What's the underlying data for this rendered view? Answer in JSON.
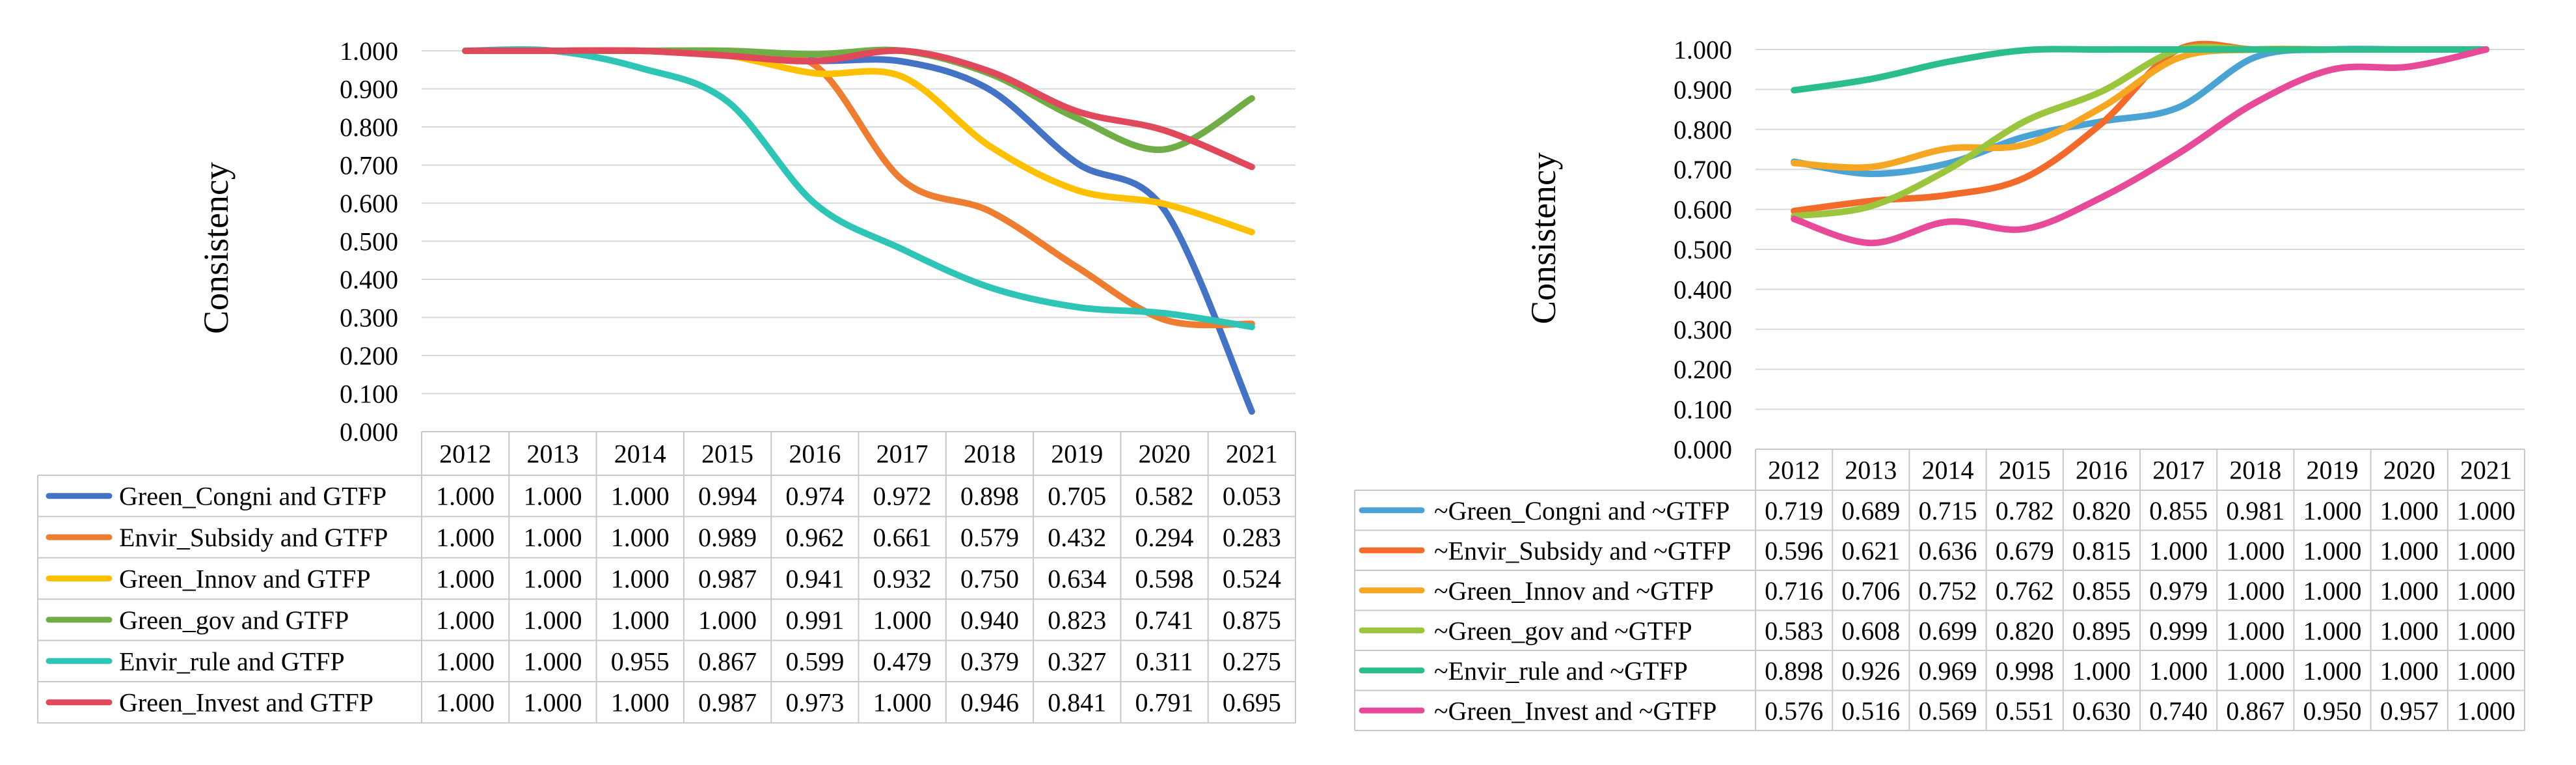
{
  "chart_data": [
    {
      "type": "line",
      "ylabel": "Consistency",
      "ylim": [
        0,
        1
      ],
      "yticks": [
        "1.000",
        "0.900",
        "0.800",
        "0.700",
        "0.600",
        "0.500",
        "0.400",
        "0.300",
        "0.200",
        "0.100",
        "0.000"
      ],
      "categories": [
        "2012",
        "2013",
        "2014",
        "2015",
        "2016",
        "2017",
        "2018",
        "2019",
        "2020",
        "2021"
      ],
      "legend": "data-table-below",
      "series": [
        {
          "name": "Green_Congni and GTFP",
          "color": "#4472C4",
          "values": [
            1.0,
            1.0,
            1.0,
            0.994,
            0.974,
            0.972,
            0.898,
            0.705,
            0.582,
            0.053
          ],
          "labels": [
            "1.000",
            "1.000",
            "1.000",
            "0.994",
            "0.974",
            "0.972",
            "0.898",
            "0.705",
            "0.582",
            "0.053"
          ]
        },
        {
          "name": "Envir_Subsidy and GTFP",
          "color": "#ED7D31",
          "values": [
            1.0,
            1.0,
            1.0,
            0.989,
            0.962,
            0.661,
            0.579,
            0.432,
            0.294,
            0.283
          ],
          "labels": [
            "1.000",
            "1.000",
            "1.000",
            "0.989",
            "0.962",
            "0.661",
            "0.579",
            "0.432",
            "0.294",
            "0.283"
          ]
        },
        {
          "name": "Green_Innov and GTFP",
          "color": "#FFC000",
          "values": [
            1.0,
            1.0,
            1.0,
            0.987,
            0.941,
            0.932,
            0.75,
            0.634,
            0.598,
            0.524
          ],
          "labels": [
            "1.000",
            "1.000",
            "1.000",
            "0.987",
            "0.941",
            "0.932",
            "0.750",
            "0.634",
            "0.598",
            "0.524"
          ]
        },
        {
          "name": "Green_gov and GTFP",
          "color": "#70AD47",
          "values": [
            1.0,
            1.0,
            1.0,
            1.0,
            0.991,
            1.0,
            0.94,
            0.823,
            0.741,
            0.875
          ],
          "labels": [
            "1.000",
            "1.000",
            "1.000",
            "1.000",
            "0.991",
            "1.000",
            "0.940",
            "0.823",
            "0.741",
            "0.875"
          ]
        },
        {
          "name": "Envir_rule and GTFP",
          "color": "#2EC4B6",
          "values": [
            1.0,
            1.0,
            0.955,
            0.867,
            0.599,
            0.479,
            0.379,
            0.327,
            0.311,
            0.275
          ],
          "labels": [
            "1.000",
            "1.000",
            "0.955",
            "0.867",
            "0.599",
            "0.479",
            "0.379",
            "0.327",
            "0.311",
            "0.275"
          ]
        },
        {
          "name": "Green_Invest and GTFP",
          "color": "#E0485C",
          "values": [
            1.0,
            1.0,
            1.0,
            0.987,
            0.973,
            1.0,
            0.946,
            0.841,
            0.791,
            0.695
          ],
          "labels": [
            "1.000",
            "1.000",
            "1.000",
            "0.987",
            "0.973",
            "1.000",
            "0.946",
            "0.841",
            "0.791",
            "0.695"
          ]
        }
      ]
    },
    {
      "type": "line",
      "ylabel": "Consistency",
      "ylim": [
        0,
        1
      ],
      "yticks": [
        "1.000",
        "0.900",
        "0.800",
        "0.700",
        "0.600",
        "0.500",
        "0.400",
        "0.300",
        "0.200",
        "0.100",
        "0.000"
      ],
      "categories": [
        "2012",
        "2013",
        "2014",
        "2015",
        "2016",
        "2017",
        "2018",
        "2019",
        "2020",
        "2021"
      ],
      "legend": "data-table-below",
      "series": [
        {
          "name": "~Green_Congni and ~GTFP",
          "color": "#4BA3D4",
          "values": [
            0.719,
            0.689,
            0.715,
            0.782,
            0.82,
            0.855,
            0.981,
            1.0,
            1.0,
            1.0
          ],
          "labels": [
            "0.719",
            "0.689",
            "0.715",
            "0.782",
            "0.820",
            "0.855",
            "0.981",
            "1.000",
            "1.000",
            "1.000"
          ]
        },
        {
          "name": "~Envir_Subsidy and ~GTFP",
          "color": "#F26B2A",
          "values": [
            0.596,
            0.621,
            0.636,
            0.679,
            0.815,
            1.0,
            1.0,
            1.0,
            1.0,
            1.0
          ],
          "labels": [
            "0.596",
            "0.621",
            "0.636",
            "0.679",
            "0.815",
            "1.000",
            "1.000",
            "1.000",
            "1.000",
            "1.000"
          ]
        },
        {
          "name": "~Green_Innov and ~GTFP",
          "color": "#F5A623",
          "values": [
            0.716,
            0.706,
            0.752,
            0.762,
            0.855,
            0.979,
            1.0,
            1.0,
            1.0,
            1.0
          ],
          "labels": [
            "0.716",
            "0.706",
            "0.752",
            "0.762",
            "0.855",
            "0.979",
            "1.000",
            "1.000",
            "1.000",
            "1.000"
          ]
        },
        {
          "name": "~Green_gov and ~GTFP",
          "color": "#9BC53D",
          "values": [
            0.583,
            0.608,
            0.699,
            0.82,
            0.895,
            0.999,
            1.0,
            1.0,
            1.0,
            1.0
          ],
          "labels": [
            "0.583",
            "0.608",
            "0.699",
            "0.820",
            "0.895",
            "0.999",
            "1.000",
            "1.000",
            "1.000",
            "1.000"
          ]
        },
        {
          "name": "~Envir_rule and ~GTFP",
          "color": "#2BBE8C",
          "values": [
            0.898,
            0.926,
            0.969,
            0.998,
            1.0,
            1.0,
            1.0,
            1.0,
            1.0,
            1.0
          ],
          "labels": [
            "0.898",
            "0.926",
            "0.969",
            "0.998",
            "1.000",
            "1.000",
            "1.000",
            "1.000",
            "1.000",
            "1.000"
          ]
        },
        {
          "name": "~Green_Invest and ~GTFP",
          "color": "#E84A9A",
          "values": [
            0.576,
            0.516,
            0.569,
            0.551,
            0.63,
            0.74,
            0.867,
            0.95,
            0.957,
            1.0
          ],
          "labels": [
            "0.576",
            "0.516",
            "0.569",
            "0.551",
            "0.630",
            "0.740",
            "0.867",
            "0.950",
            "0.957",
            "1.000"
          ]
        }
      ]
    }
  ]
}
